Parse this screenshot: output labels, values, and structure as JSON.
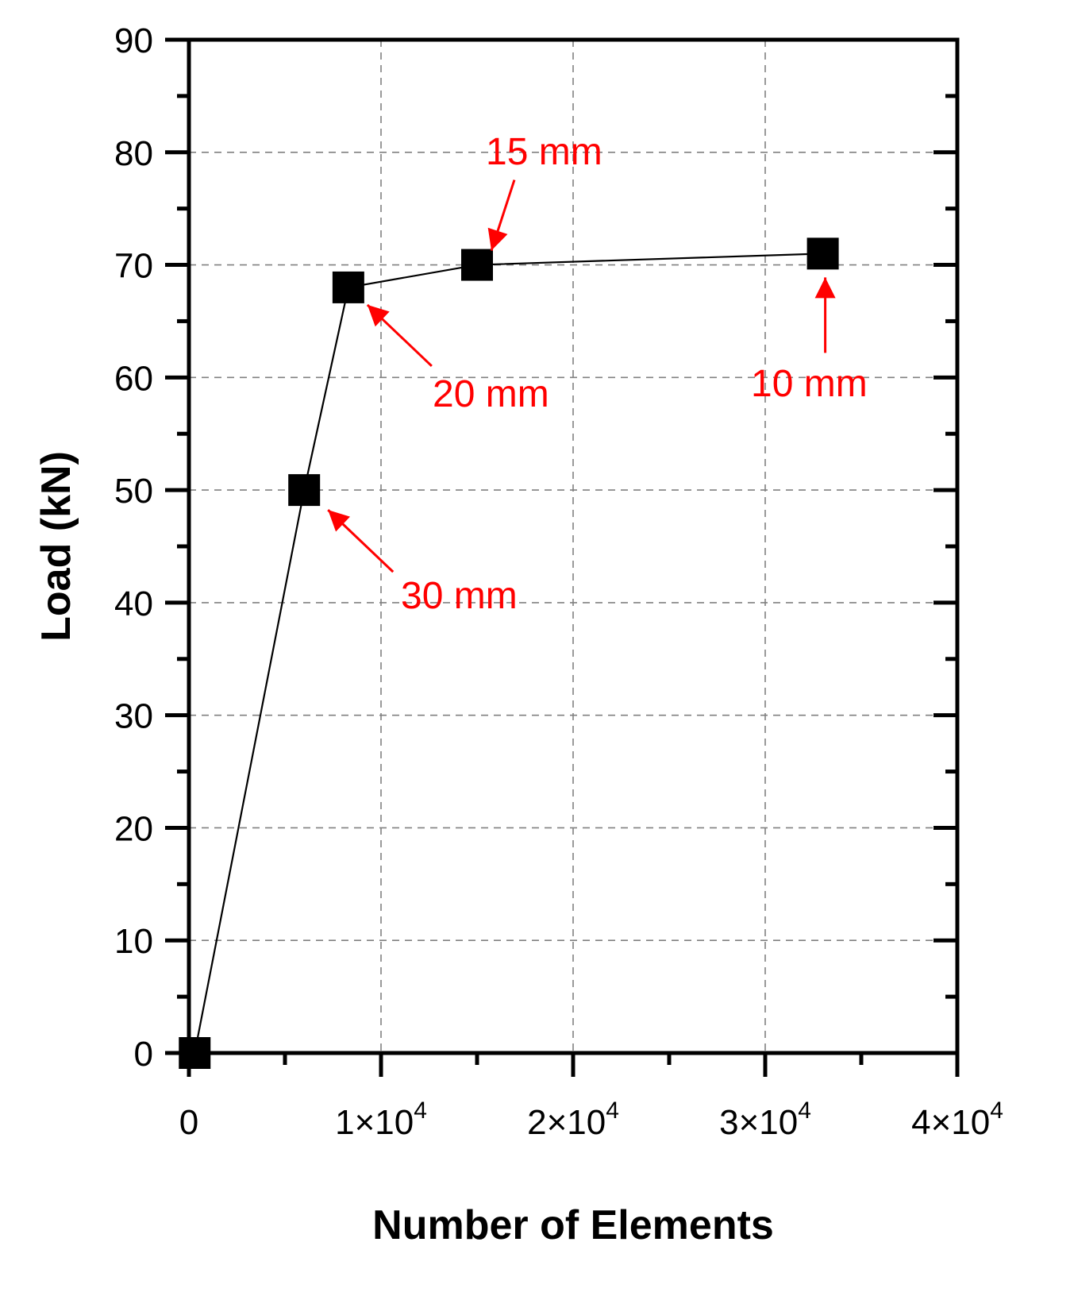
{
  "chart_data": {
    "type": "line",
    "xlabel": "Number of Elements",
    "ylabel": "Load (kN)",
    "xlim": [
      0,
      40000
    ],
    "ylim": [
      0,
      90
    ],
    "grid": true,
    "x_ticks": [
      {
        "value": 0,
        "label": "0"
      },
      {
        "value": 10000,
        "label": "1×10",
        "exp": "4"
      },
      {
        "value": 20000,
        "label": "2×10",
        "exp": "4"
      },
      {
        "value": 30000,
        "label": "3×10",
        "exp": "4"
      },
      {
        "value": 40000,
        "label": "4×10",
        "exp": "4"
      }
    ],
    "y_ticks": [
      0,
      10,
      20,
      30,
      40,
      50,
      60,
      70,
      80,
      90
    ],
    "series": [
      {
        "x": [
          300,
          6000,
          8300,
          15000,
          33000
        ],
        "y": [
          0,
          50,
          68,
          70,
          71
        ]
      }
    ],
    "annotations": [
      {
        "text": "30 mm",
        "x": 6000,
        "y": 50
      },
      {
        "text": "20 mm",
        "x": 8300,
        "y": 68
      },
      {
        "text": "15 mm",
        "x": 15000,
        "y": 70
      },
      {
        "text": "10 mm",
        "x": 33000,
        "y": 71
      }
    ],
    "annotation_color": "#ff0000",
    "marker_color": "#000000",
    "line_color": "#000000",
    "grid_color": "#808080"
  }
}
